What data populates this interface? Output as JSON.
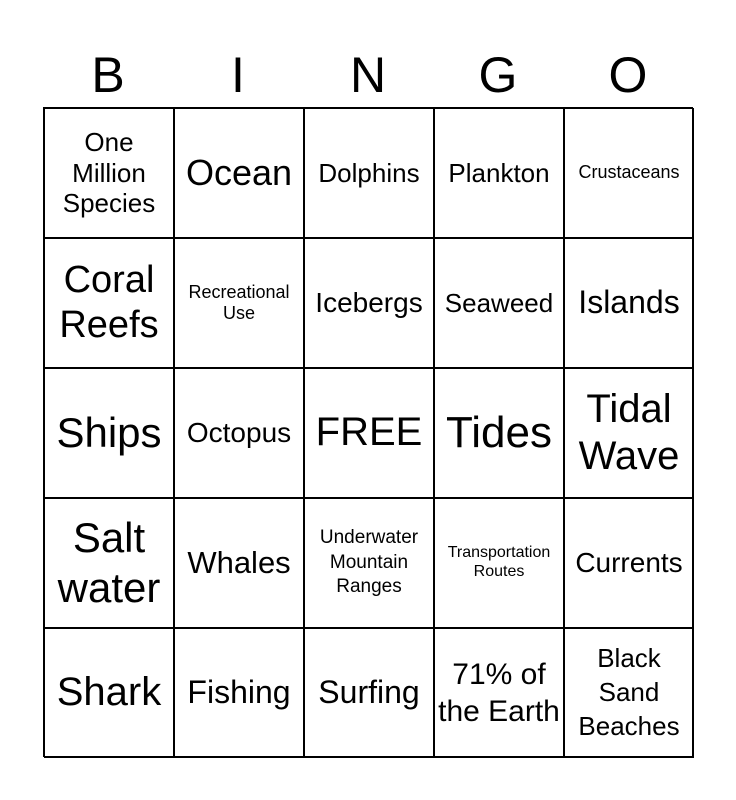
{
  "header": [
    "B",
    "I",
    "N",
    "G",
    "O"
  ],
  "cells": [
    "One Million Species",
    "Ocean",
    "Dolphins",
    "Plankton",
    "Crustaceans",
    "Coral Reefs",
    "Recreational Use",
    "Icebergs",
    "Seaweed",
    "Islands",
    "Ships",
    "Octopus",
    "FREE",
    "Tides",
    "Tidal Wave",
    "Salt water",
    "Whales",
    "Underwater Mountain Ranges",
    "Transportation Routes",
    "Currents",
    "Shark",
    "Fishing",
    "Surfing",
    "71% of the Earth",
    "Black Sand Beaches"
  ]
}
